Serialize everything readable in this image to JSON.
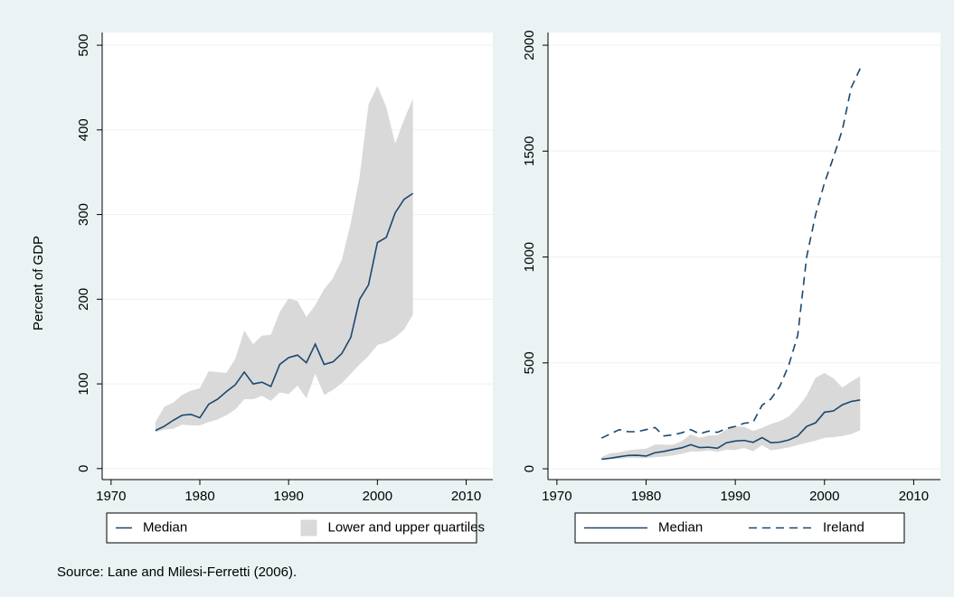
{
  "chart_data": [
    {
      "type": "line",
      "ylabel": "Percent of GDP",
      "x": [
        1975,
        1976,
        1977,
        1978,
        1979,
        1980,
        1981,
        1982,
        1983,
        1984,
        1985,
        1986,
        1987,
        1988,
        1989,
        1990,
        1991,
        1992,
        1993,
        1994,
        1995,
        1996,
        1997,
        1998,
        1999,
        2000,
        2001,
        2002,
        2003,
        2004
      ],
      "series": [
        {
          "name": "Median",
          "color": "#1a476f",
          "dashed": false,
          "values": [
            45,
            50,
            57,
            63,
            64,
            60,
            76,
            82,
            91,
            99,
            114,
            100,
            102,
            97,
            123,
            131,
            134,
            125,
            147,
            123,
            126,
            136,
            155,
            200,
            217,
            267,
            273,
            302,
            318,
            325
          ]
        }
      ],
      "band": {
        "name": "Lower and upper quartiles",
        "color": "#d9d9d9",
        "lower": [
          43,
          46,
          47,
          52,
          51,
          51,
          55,
          58,
          63,
          70,
          82,
          82,
          86,
          80,
          90,
          88,
          98,
          83,
          112,
          87,
          93,
          101,
          112,
          123,
          133,
          146,
          149,
          155,
          164,
          182
        ],
        "upper": [
          55,
          73,
          78,
          87,
          92,
          95,
          115,
          114,
          113,
          130,
          163,
          147,
          157,
          158,
          185,
          201,
          198,
          179,
          193,
          212,
          225,
          247,
          290,
          345,
          430,
          452,
          427,
          384,
          412,
          437
        ]
      },
      "xlim": [
        1969,
        2013
      ],
      "xticks": [
        1970,
        1980,
        1990,
        2000,
        2010
      ],
      "ylim": [
        -13,
        515
      ],
      "yticks": [
        0,
        100,
        200,
        300,
        400,
        500
      ],
      "grid": true
    },
    {
      "type": "line",
      "x": [
        1975,
        1976,
        1977,
        1978,
        1979,
        1980,
        1981,
        1982,
        1983,
        1984,
        1985,
        1986,
        1987,
        1988,
        1989,
        1990,
        1991,
        1992,
        1993,
        1994,
        1995,
        1996,
        1997,
        1998,
        1999,
        2000,
        2001,
        2002,
        2003,
        2004
      ],
      "series": [
        {
          "name": "Median",
          "color": "#1a476f",
          "dashed": false,
          "values": [
            45,
            50,
            57,
            63,
            64,
            60,
            76,
            82,
            91,
            99,
            114,
            100,
            102,
            97,
            123,
            131,
            134,
            125,
            147,
            123,
            126,
            136,
            155,
            200,
            217,
            267,
            273,
            302,
            318,
            325
          ]
        },
        {
          "name": "Ireland",
          "color": "#1a476f",
          "dashed": true,
          "values": [
            145,
            165,
            185,
            175,
            175,
            185,
            195,
            155,
            160,
            170,
            185,
            165,
            178,
            172,
            190,
            200,
            215,
            220,
            300,
            330,
            390,
            490,
            630,
            1000,
            1200,
            1350,
            1470,
            1600,
            1800,
            1890
          ]
        }
      ],
      "band": {
        "color": "#d9d9d9",
        "lower": [
          43,
          46,
          47,
          52,
          51,
          51,
          55,
          58,
          63,
          70,
          82,
          82,
          86,
          80,
          90,
          88,
          98,
          83,
          112,
          87,
          93,
          101,
          112,
          123,
          133,
          146,
          149,
          155,
          164,
          182
        ],
        "upper": [
          55,
          73,
          78,
          87,
          92,
          95,
          115,
          114,
          113,
          130,
          163,
          147,
          157,
          158,
          185,
          201,
          198,
          179,
          193,
          212,
          225,
          247,
          290,
          345,
          430,
          452,
          427,
          384,
          412,
          437
        ]
      },
      "xlim": [
        1969,
        2013
      ],
      "xticks": [
        1970,
        1980,
        1990,
        2000,
        2010
      ],
      "ylim": [
        -51,
        2060
      ],
      "yticks": [
        0,
        500,
        1000,
        1500,
        2000
      ],
      "grid": true
    }
  ],
  "note": "Source: Lane and Milesi-Ferretti (2006)."
}
